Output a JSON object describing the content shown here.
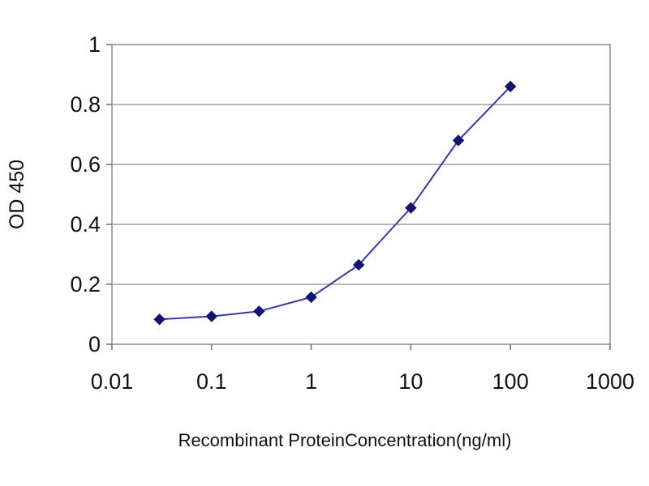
{
  "chart_data": {
    "type": "line",
    "title": "",
    "xlabel": "Recombinant ProteinConcentration(ng/ml)",
    "ylabel": "OD 450",
    "x_scale": "log",
    "xlim": [
      0.01,
      1000
    ],
    "ylim": [
      0,
      1
    ],
    "x_ticks": [
      "0.01",
      "0.1",
      "1",
      "10",
      "100",
      "1000"
    ],
    "y_ticks": [
      "0",
      "0.2",
      "0.4",
      "0.6",
      "0.8",
      "1"
    ],
    "grid": "horizontal",
    "legend": "none",
    "series": [
      {
        "color": "#3a3aa0",
        "marker_color": "#14146e",
        "marker": "diamond",
        "x": [
          0.03,
          0.1,
          0.3,
          1,
          3,
          10,
          30,
          100
        ],
        "y": [
          0.083,
          0.093,
          0.11,
          0.157,
          0.265,
          0.455,
          0.68,
          0.86
        ]
      }
    ]
  }
}
